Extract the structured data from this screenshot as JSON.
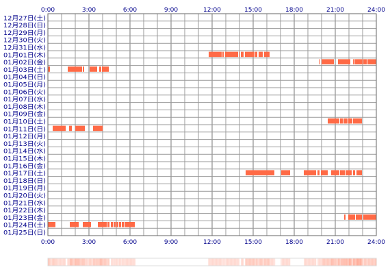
{
  "chart_data": {
    "type": "heatmap",
    "title": "",
    "x_unit": "hour of day",
    "x_range": [
      0,
      24
    ],
    "x_ticks": [
      "0:00",
      "3:00",
      "6:00",
      "9:00",
      "12:00",
      "15:00",
      "18:00",
      "21:00",
      "24:00"
    ],
    "grid": true,
    "bar_color": "#ff6a46",
    "grid_color": "#999999",
    "summary_strip_color": "#ff6a46",
    "rows": [
      {
        "label": "12月27日(土)",
        "segments": []
      },
      {
        "label": "12月28日(日)",
        "segments": []
      },
      {
        "label": "12月29日(月)",
        "segments": []
      },
      {
        "label": "12月30日(火)",
        "segments": []
      },
      {
        "label": "12月31日(水)",
        "segments": []
      },
      {
        "label": "01月01日(木)",
        "segments": [
          [
            11.75,
            12.7
          ],
          [
            12.75,
            12.85
          ],
          [
            12.95,
            13.9
          ],
          [
            13.95,
            14.0
          ],
          [
            14.1,
            14.3
          ],
          [
            14.4,
            15.1
          ],
          [
            15.15,
            15.3
          ],
          [
            15.4,
            15.7
          ],
          [
            15.8,
            16.2
          ]
        ]
      },
      {
        "label": "01月02日(金)",
        "segments": [
          [
            19.8,
            19.85
          ],
          [
            20.0,
            20.9
          ],
          [
            21.2,
            22.1
          ],
          [
            22.3,
            22.35
          ],
          [
            22.4,
            23.0
          ],
          [
            23.05,
            23.3
          ],
          [
            23.35,
            24.0
          ]
        ]
      },
      {
        "label": "01月03日(土)",
        "segments": [
          [
            0.0,
            0.15
          ],
          [
            1.45,
            2.5
          ],
          [
            2.55,
            2.65
          ],
          [
            3.05,
            3.6
          ],
          [
            3.75,
            3.9
          ],
          [
            3.95,
            4.45
          ]
        ]
      },
      {
        "label": "01月04日(日)",
        "segments": []
      },
      {
        "label": "01月05日(月)",
        "segments": []
      },
      {
        "label": "01月06日(火)",
        "segments": []
      },
      {
        "label": "01月07日(水)",
        "segments": []
      },
      {
        "label": "01月08日(木)",
        "segments": []
      },
      {
        "label": "01月09日(金)",
        "segments": []
      },
      {
        "label": "01月10日(土)",
        "segments": [
          [
            20.45,
            21.3
          ],
          [
            21.35,
            21.55
          ],
          [
            21.6,
            21.9
          ],
          [
            21.95,
            22.25
          ],
          [
            22.3,
            22.95
          ]
        ]
      },
      {
        "label": "01月11日(日)",
        "segments": [
          [
            0.35,
            1.3
          ],
          [
            1.55,
            1.75
          ],
          [
            2.0,
            2.7
          ],
          [
            3.3,
            4.0
          ]
        ]
      },
      {
        "label": "01月12日(月)",
        "segments": []
      },
      {
        "label": "01月13日(火)",
        "segments": []
      },
      {
        "label": "01月14日(水)",
        "segments": []
      },
      {
        "label": "01月15日(木)",
        "segments": []
      },
      {
        "label": "01月16日(金)",
        "segments": []
      },
      {
        "label": "01月17日(土)",
        "segments": [
          [
            14.45,
            16.55
          ],
          [
            17.05,
            17.7
          ],
          [
            18.7,
            19.6
          ],
          [
            19.7,
            19.85
          ],
          [
            19.95,
            20.45
          ],
          [
            20.7,
            21.3
          ],
          [
            21.35,
            21.7
          ],
          [
            21.75,
            22.2
          ],
          [
            22.3,
            22.45
          ],
          [
            22.55,
            22.95
          ]
        ]
      },
      {
        "label": "01月18日(日)",
        "segments": []
      },
      {
        "label": "01月19日(月)",
        "segments": []
      },
      {
        "label": "01月20日(火)",
        "segments": []
      },
      {
        "label": "01月21日(水)",
        "segments": []
      },
      {
        "label": "01月22日(木)",
        "segments": []
      },
      {
        "label": "01月23日(金)",
        "segments": [
          [
            21.65,
            21.75
          ],
          [
            21.95,
            22.45
          ],
          [
            22.5,
            22.95
          ],
          [
            23.05,
            24.0
          ]
        ]
      },
      {
        "label": "01月24日(土)",
        "segments": [
          [
            0.0,
            0.55
          ],
          [
            1.6,
            2.25
          ],
          [
            2.55,
            3.15
          ],
          [
            3.65,
            4.3
          ],
          [
            4.35,
            4.5
          ],
          [
            4.6,
            4.75
          ],
          [
            4.8,
            4.95
          ],
          [
            5.0,
            5.15
          ],
          [
            5.2,
            5.35
          ],
          [
            5.4,
            5.55
          ],
          [
            5.6,
            6.35
          ]
        ]
      },
      {
        "label": "01月25日(日)",
        "segments": []
      }
    ]
  }
}
